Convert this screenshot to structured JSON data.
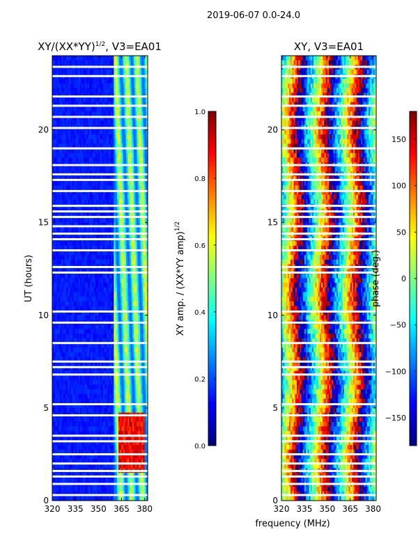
{
  "figure": {
    "suptitle": "2019-06-07 0.0-24.0",
    "shared_xlabel": "frequency (MHz)",
    "colors": {
      "gap_rows": "#ffffff",
      "frame": "#000000",
      "jet": [
        "#00007f",
        "#0000ff",
        "#007fff",
        "#00ffff",
        "#7fff7f",
        "#ffff00",
        "#ff7f00",
        "#ff0000",
        "#7f0000"
      ]
    }
  },
  "chart_data": [
    {
      "type": "heatmap",
      "title_main": "XY/(XX*YY)",
      "title_sup": "1/2",
      "title_tail": ", V3=EA01",
      "xlabel": "",
      "ylabel": "UT (hours)",
      "xlim": [
        320,
        382
      ],
      "ylim": [
        0,
        24
      ],
      "xticks": [
        320,
        335,
        350,
        365,
        380
      ],
      "yticks": [
        0,
        5,
        10,
        15,
        20
      ],
      "colorbar": {
        "label_main": "XY amp. / (XX*YY amp)",
        "label_sup": "1/2",
        "range": [
          0.0,
          1.0
        ],
        "ticks": [
          "0.0",
          "0.2",
          "0.4",
          "0.6",
          "0.8",
          "1.0"
        ],
        "tick_values": [
          0.0,
          0.2,
          0.4,
          0.6,
          0.8,
          1.0
        ]
      },
      "features": {
        "background_value": 0.12,
        "bright_band_mhz": [
          360,
          382
        ],
        "bright_band_value": 0.45,
        "hotspot_hours": [
          1.5,
          4.7
        ],
        "hotspot_mhz": [
          363,
          380
        ],
        "hotspot_value": 0.8
      }
    },
    {
      "type": "heatmap",
      "title_main": "XY, V3=EA01",
      "title_sup": "",
      "title_tail": "",
      "xlabel": "frequency (MHz)",
      "ylabel": "",
      "xlim": [
        320,
        382
      ],
      "ylim": [
        0,
        24
      ],
      "xticks": [
        320,
        335,
        350,
        365,
        380
      ],
      "yticks": [
        0,
        5,
        10,
        15,
        20
      ],
      "colorbar": {
        "label_main": "phase (deg.)",
        "label_sup": "",
        "range": [
          -180,
          180
        ],
        "ticks": [
          "150",
          "100",
          "50",
          "0",
          "−50",
          "−100",
          "−150"
        ],
        "tick_values": [
          150,
          100,
          50,
          0,
          -50,
          -100,
          -150
        ]
      },
      "features": {
        "phase_wrap_mhz_per_cycle": 20,
        "phase_offset_deg": -40
      }
    }
  ],
  "flagged_hours": [
    0.3,
    0.9,
    1.3,
    1.6,
    2.0,
    2.5,
    3.2,
    3.5,
    4.6,
    5.2,
    6.8,
    7.2,
    7.5,
    8.5,
    9.6,
    10.2,
    12.3,
    12.6,
    13.5,
    14.1,
    14.4,
    14.8,
    15.3,
    15.6,
    15.9,
    16.7,
    17.3,
    17.6,
    18.1,
    19.0,
    20.1,
    20.7,
    21.3,
    21.8,
    22.9,
    23.4
  ]
}
